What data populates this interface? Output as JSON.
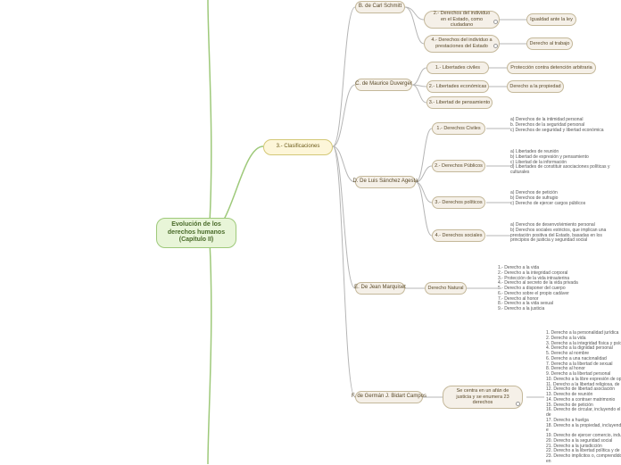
{
  "root": {
    "label": "Evolución de los derechos humanos (Capítulo II)"
  },
  "level1": {
    "label": "3.- Clasificaciones"
  },
  "authors": {
    "schmitt": {
      "label": "B. de Carl Schmitt"
    },
    "duverger": {
      "label": "C. de Maurice Duverger"
    },
    "sanchez": {
      "label": "D. De Luis Sánchez Agesta"
    },
    "marquiset": {
      "label": "E. De Jean Marquiset"
    },
    "bidart": {
      "label": "F. de Germán J. Bidart Campos"
    }
  },
  "schmitt": {
    "cat2": {
      "label": "2.- Derechos del individuo en el Estado, como ciudadano",
      "leaf": "Igualdad ante la ley"
    },
    "cat4": {
      "label": "4.- Derechos del individuo a prestaciones del Estado",
      "leaf": "Derecho al trabajo"
    }
  },
  "duverger": {
    "cat1": {
      "label": "1.- Libertades civiles",
      "leaf": "Protección contra detención arbitraria"
    },
    "cat2": {
      "label": "2.- Libertades económicas",
      "leaf": "Derecho a la propiedad"
    },
    "cat3": {
      "label": "3.- Libertad de pensamiento"
    }
  },
  "sanchez": {
    "cat1": {
      "label": "1.- Derechos Civiles",
      "leaf": "a) Derechos de la intimidad personal\nb. Derechos de la seguridad personal\nc) Derechos de seguridad y libertad económica"
    },
    "cat2": {
      "label": "2.- Derechos Públicos",
      "leaf": "a) Libertades de reunión\nb) Libertad de expresión y pensamiento\nc) Libertad de la información\nd) Libertades de constituir asociaciones políticas y culturales"
    },
    "cat3": {
      "label": "3.- Derechos políticos",
      "leaf": "a) Derechos de petición\nb) Derechos de sufragio\nc) Derecho de ejercer cargos públicos"
    },
    "cat4": {
      "label": "4.- Derechos sociales",
      "leaf": "a) Derechos de desenvolvimiento personal\nb) Derechos sociales estrictos, que implican una prestación positiva del Estado, basadas en los principios de justicia y seguridad social"
    }
  },
  "marquiset": {
    "cat": {
      "label": "Derecho Natural"
    },
    "list": "1.- Derecho a la vida\n2.- Derecho a la integridad corporal\n3.- Protección de la vida intrauterina\n4.- Derecho al secreto de la vida privada\n5.- Derecho a disponer del cuerpo\n6.- Derecho sobre el propio cadáver\n7.- Derecho al honor\n8.- Derecho a la vida sexual\n9.- Derecho a la justicia"
  },
  "bidart": {
    "cat": {
      "label": "Se centra en un afán de justicia y se enumera 23 derechos"
    },
    "list": "1. Derecho a la personalidad jurídica\n2. Derecho a la vida\n3. Derecho a la integridad física y psíqui\n4. Derecho a la dignidad personal\n5. Derecho al nombre\n6. Derecho a una nacionalidad\n7. Derecho a la libertad de sexual\n8. Derecho al honor\n9. Derecho a la libertad personal\n10. Derecho a la libre expresión de opini\n11. Derecho a la libertad religiosa, de co\n12. Derecho de libertad asociación\n13. Derecho de reunión\n14. Derecho a contraer matrimonio\n15. Derecho de petición\n16. Derecho de circular, incluyendo el de\n17. Derecho a huelga\n18. Derecho a la propiedad, incluyendo e\n19. Derecho de ejercer comercio, indust\n20. Derecho a la seguridad social\n21. Derecho a la jurisdicción\n22. Derecho a la libertad política y de pa\n23. Derecho implícitos o, comprendidos en"
  },
  "colors": {
    "bg": "#ffffff",
    "root_bg": "#e8f5d8",
    "root_border": "#9ec97a",
    "level1_bg": "#fdf6d9",
    "level1_border": "#d4c877",
    "node_bg": "#f5f0e8",
    "node_border": "#c4b89a",
    "connector": "#b5b5b5"
  }
}
